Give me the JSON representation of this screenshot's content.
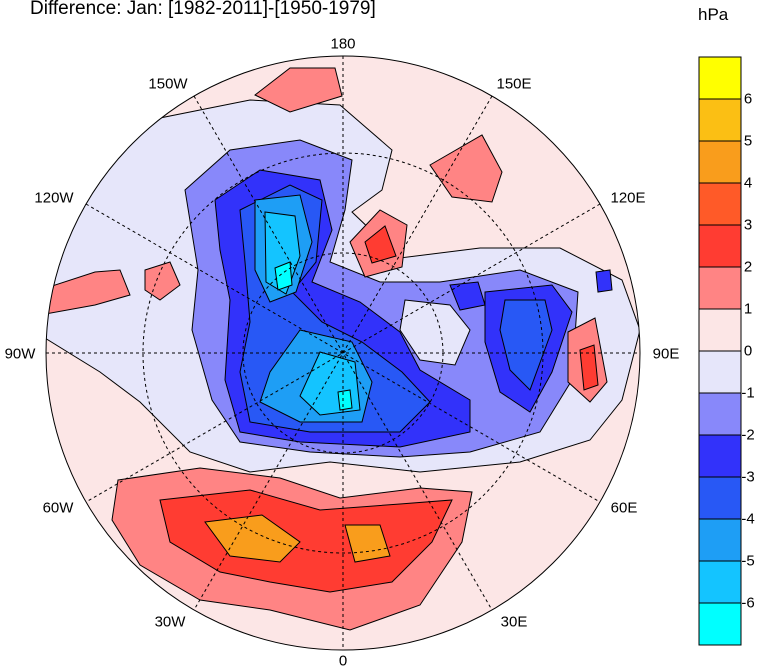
{
  "title": "Difference: Jan: [1982-2011]-[1950-1979]",
  "units": "hPa",
  "longitude_labels": {
    "lon_180": "180",
    "lon_150w": "150W",
    "lon_150e": "150E",
    "lon_120w": "120W",
    "lon_120e": "120E",
    "lon_90w": "90W",
    "lon_90e": "90E",
    "lon_60w": "60W",
    "lon_60e": "60E",
    "lon_30w": "30W",
    "lon_30e": "30E",
    "lon_0": "0"
  },
  "colorbar": {
    "colors": [
      "#ffff00",
      "#fbbf14",
      "#f99d1c",
      "#ff5a28",
      "#ff3c32",
      "#ff8484",
      "#fce6e6",
      "#e6e6fa",
      "#8888fa",
      "#3232fa",
      "#2858f5",
      "#1e9ef5",
      "#14c4ff",
      "#00ffff"
    ],
    "ticks": [
      "6",
      "5",
      "4",
      "3",
      "2",
      "1",
      "0",
      "-1",
      "-2",
      "-3",
      "-4",
      "-5",
      "-6"
    ]
  }
}
